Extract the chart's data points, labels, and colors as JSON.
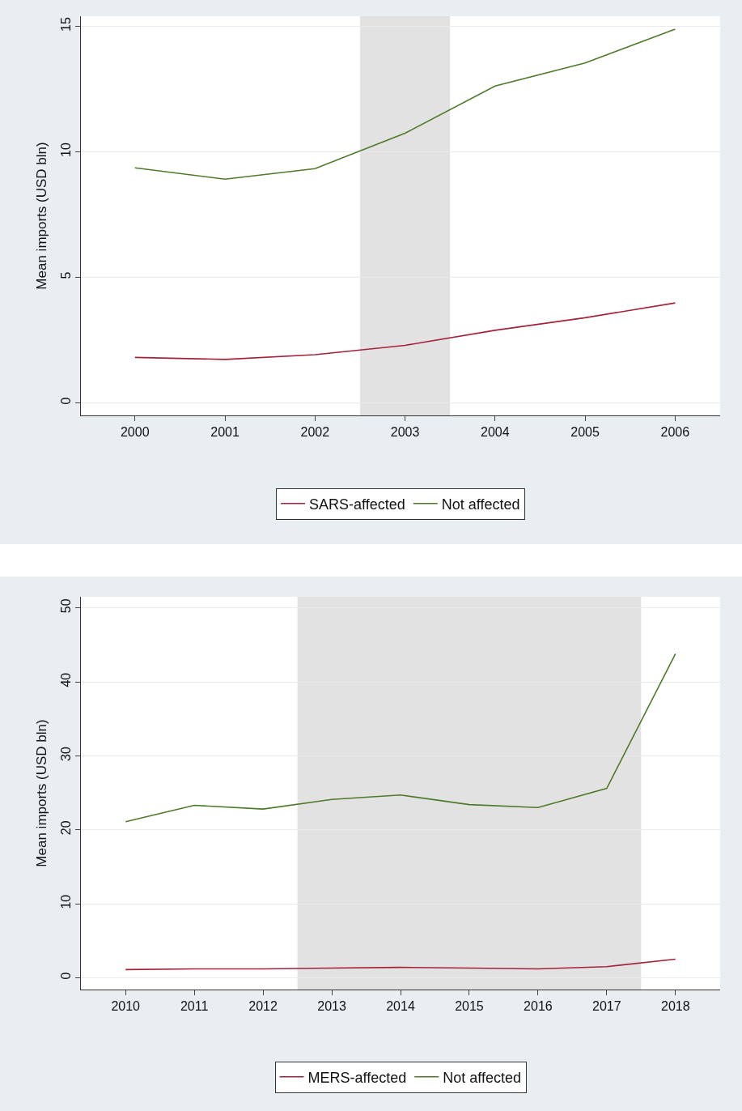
{
  "chart_data": [
    {
      "type": "line",
      "ylabel": "Mean imports (USD bln)",
      "x": [
        2000,
        2001,
        2002,
        2003,
        2004,
        2005,
        2006
      ],
      "series": [
        {
          "name": "SARS-affected",
          "color": "#a3223a",
          "values": [
            1.81,
            1.73,
            1.92,
            2.29,
            2.89,
            3.39,
            3.98
          ]
        },
        {
          "name": "Not affected",
          "color": "#4e7a2a",
          "values": [
            9.36,
            8.91,
            9.33,
            10.74,
            12.62,
            13.54,
            14.88
          ]
        }
      ],
      "xlim": [
        1999.4,
        2006.5
      ],
      "xticks": [
        2000,
        2001,
        2002,
        2003,
        2004,
        2005,
        2006
      ],
      "ylim": [
        -0.5,
        15.4
      ],
      "yticks": [
        0,
        5,
        10,
        15
      ],
      "bands": [
        {
          "axis": "x",
          "from": 2002.5,
          "to": 2003.5,
          "color": "#e2e2e2"
        }
      ],
      "grid": "y",
      "legend": "bottom",
      "line_style": "solid",
      "marker": "none"
    },
    {
      "type": "line",
      "ylabel": "Mean imports (USD bln)",
      "x": [
        2010,
        2011,
        2012,
        2013,
        2014,
        2015,
        2016,
        2017,
        2018
      ],
      "series": [
        {
          "name": "MERS-affected",
          "color": "#a3223a",
          "values": [
            1.1,
            1.2,
            1.2,
            1.3,
            1.4,
            1.3,
            1.2,
            1.5,
            2.5
          ]
        },
        {
          "name": "Not affected",
          "color": "#4e7a2a",
          "values": [
            21.1,
            23.3,
            22.8,
            24.1,
            24.7,
            23.4,
            23.0,
            25.6,
            43.8
          ]
        }
      ],
      "xlim": [
        2009.35,
        2018.65
      ],
      "xticks": [
        2010,
        2011,
        2012,
        2013,
        2014,
        2015,
        2016,
        2017,
        2018
      ],
      "ylim": [
        -1.6,
        51.5
      ],
      "yticks": [
        0,
        10,
        20,
        30,
        40,
        50
      ],
      "bands": [
        {
          "axis": "x",
          "from": 2012.5,
          "to": 2017.5,
          "color": "#e2e2e2"
        }
      ],
      "grid": "y",
      "legend": "bottom",
      "line_style": "solid",
      "marker": "none"
    }
  ]
}
